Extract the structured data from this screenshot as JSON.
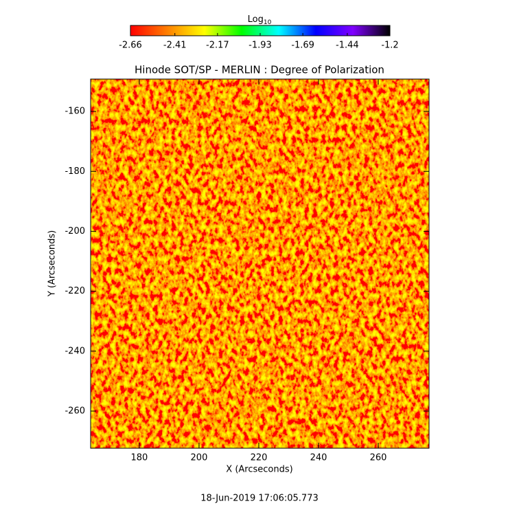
{
  "chart_data": {
    "type": "heatmap",
    "title": "Hinode SOT/SP - MERLIN : Degree of Polarization",
    "x_label": "X (Arcseconds)",
    "y_label": "Y (Arcseconds)",
    "footer": "18-Jun-2019 17:06:05.773",
    "xlim": [
      163.7,
      277.0
    ],
    "ylim": [
      -272.4,
      -149.2
    ],
    "xticks": [
      180,
      200,
      220,
      240,
      260
    ],
    "yticks": [
      -160,
      -180,
      -200,
      -220,
      -240,
      -260
    ],
    "colorbar": {
      "title": "Log",
      "title_subscript": "10",
      "lim": [
        -2.66,
        -1.2
      ],
      "ticks": [
        -2.66,
        -2.41,
        -2.17,
        -1.93,
        -1.69,
        -1.44,
        -1.2
      ],
      "colors": [
        "#ff0000",
        "#ff8000",
        "#ffff00",
        "#00ff00",
        "#00ffff",
        "#0000ff",
        "#8000ff",
        "#000000"
      ]
    }
  }
}
